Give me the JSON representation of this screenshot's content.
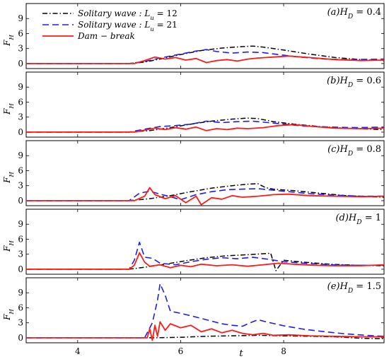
{
  "figure": {
    "ylabel": "F",
    "ylabel_sub": "H",
    "xlabel": "t"
  },
  "legend": {
    "entries": [
      {
        "text": "Solitary wave :  L",
        "sub": "u",
        "tail": " = 12",
        "color": "#000000",
        "dash": "dashdot"
      },
      {
        "text": "Solitary wave :  L",
        "sub": "u",
        "tail": " = 21",
        "color": "#1f1fe0",
        "dash": "dashed"
      },
      {
        "text": "Dam − break",
        "sub": "",
        "tail": "",
        "color": "#ff1a1a",
        "dash": "solid"
      }
    ]
  },
  "chart_data": [
    {
      "type": "line",
      "panel_label": "(a)",
      "label_var": "H",
      "label_sub": "D",
      "label_value": " = 0.4",
      "xlim": [
        3,
        9.95
      ],
      "ylim": [
        -1,
        12
      ],
      "yticks": [
        0,
        3,
        6,
        9
      ],
      "xticks": [
        4,
        6,
        8
      ],
      "series": [
        {
          "key": "s12",
          "x": [
            3,
            5.0,
            5.3,
            5.6,
            6.0,
            6.4,
            6.8,
            7.2,
            7.4,
            7.6,
            8.0,
            8.5,
            9.0,
            9.5,
            9.95
          ],
          "y": [
            0,
            0,
            0.3,
            0.9,
            1.8,
            2.6,
            3.1,
            3.4,
            3.5,
            3.3,
            2.7,
            1.9,
            1.2,
            0.8,
            0.6
          ]
        },
        {
          "key": "s21",
          "x": [
            3,
            5.0,
            5.3,
            5.6,
            6.0,
            6.3,
            6.5,
            6.7,
            7.0,
            7.3,
            7.6,
            7.9,
            8.3,
            8.8,
            9.3,
            9.95
          ],
          "y": [
            0,
            0,
            0.4,
            1.1,
            1.9,
            2.5,
            2.8,
            2.4,
            2.1,
            2.3,
            2.2,
            1.8,
            1.3,
            0.9,
            0.8,
            0.9
          ]
        },
        {
          "key": "dam",
          "x": [
            3,
            5.1,
            5.3,
            5.5,
            5.7,
            5.9,
            6.1,
            6.3,
            6.5,
            6.7,
            6.9,
            7.1,
            7.3,
            7.5,
            7.8,
            8.1,
            8.5,
            9.0,
            9.5,
            9.95
          ],
          "y": [
            0,
            0,
            0.6,
            1.3,
            0.9,
            1.2,
            0.7,
            1.0,
            0.2,
            0.6,
            0.8,
            0.5,
            0.9,
            1.1,
            1.3,
            1.5,
            1.2,
            0.8,
            0.6,
            0.7
          ]
        }
      ]
    },
    {
      "type": "line",
      "panel_label": "(b)",
      "label_var": "H",
      "label_sub": "D",
      "label_value": " = 0.6",
      "xlim": [
        3,
        9.95
      ],
      "ylim": [
        -1,
        12
      ],
      "yticks": [
        0,
        3,
        6,
        9
      ],
      "xticks": [
        4,
        6,
        8
      ],
      "series": [
        {
          "key": "s12",
          "x": [
            3,
            5.0,
            5.4,
            5.8,
            6.2,
            6.6,
            7.0,
            7.3,
            7.5,
            7.8,
            8.2,
            8.7,
            9.2,
            9.95
          ],
          "y": [
            0,
            0,
            0.3,
            0.9,
            1.6,
            2.2,
            2.6,
            2.8,
            2.7,
            2.1,
            1.6,
            1.1,
            0.8,
            0.5
          ]
        },
        {
          "key": "s21",
          "x": [
            3,
            5.0,
            5.3,
            5.6,
            5.9,
            6.2,
            6.5,
            6.8,
            7.1,
            7.4,
            7.7,
            8.0,
            8.4,
            8.9,
            9.4,
            9.95
          ],
          "y": [
            0,
            0,
            0.6,
            1.1,
            1.3,
            1.6,
            2.2,
            1.9,
            2.1,
            2.2,
            1.9,
            1.6,
            1.2,
            1.0,
            0.9,
            1.0
          ]
        },
        {
          "key": "dam",
          "x": [
            3,
            5.1,
            5.3,
            5.5,
            5.7,
            5.9,
            6.1,
            6.3,
            6.5,
            6.7,
            6.9,
            7.1,
            7.3,
            7.6,
            7.9,
            8.2,
            8.6,
            9.0,
            9.5,
            9.95
          ],
          "y": [
            0,
            0,
            0.4,
            0.8,
            0.5,
            0.9,
            0.6,
            1.0,
            0.3,
            0.7,
            0.5,
            0.8,
            0.7,
            0.9,
            1.3,
            1.5,
            1.1,
            0.8,
            0.7,
            0.8
          ]
        }
      ]
    },
    {
      "type": "line",
      "panel_label": "(c)",
      "label_var": "H",
      "label_sub": "D",
      "label_value": " = 0.8",
      "xlim": [
        3,
        9.95
      ],
      "ylim": [
        -1,
        12
      ],
      "yticks": [
        0,
        3,
        6,
        9
      ],
      "xticks": [
        4,
        6,
        8
      ],
      "series": [
        {
          "key": "s12",
          "x": [
            3,
            5.0,
            5.4,
            5.8,
            6.2,
            6.6,
            7.0,
            7.3,
            7.5,
            7.65,
            7.8,
            8.2,
            8.7,
            9.2,
            9.95
          ],
          "y": [
            0,
            0,
            0.4,
            1.0,
            1.8,
            2.5,
            3.0,
            3.3,
            3.4,
            2.6,
            2.3,
            2.0,
            1.5,
            1.0,
            0.7
          ]
        },
        {
          "key": "s21",
          "x": [
            3,
            5.0,
            5.2,
            5.4,
            5.6,
            5.8,
            6.0,
            6.3,
            6.6,
            6.9,
            7.2,
            7.5,
            7.8,
            8.1,
            8.5,
            9.0,
            9.5,
            9.95
          ],
          "y": [
            0,
            0,
            1.5,
            1.9,
            1.3,
            0.8,
            0.2,
            1.2,
            1.8,
            2.2,
            2.3,
            2.4,
            2.1,
            1.8,
            1.4,
            1.1,
            0.9,
            0.9
          ]
        },
        {
          "key": "dam",
          "x": [
            3,
            5.1,
            5.3,
            5.4,
            5.5,
            5.7,
            5.9,
            6.1,
            6.3,
            6.4,
            6.6,
            6.8,
            7.0,
            7.2,
            7.5,
            7.8,
            8.1,
            8.5,
            9.0,
            9.5,
            9.95
          ],
          "y": [
            0,
            0,
            0.9,
            2.6,
            1.2,
            0.4,
            1.0,
            -0.4,
            0.9,
            -0.8,
            0.6,
            0.3,
            1.0,
            0.7,
            0.9,
            1.2,
            1.3,
            1.0,
            0.9,
            0.8,
            0.9
          ]
        }
      ]
    },
    {
      "type": "line",
      "panel_label": "(d)",
      "label_var": "H",
      "label_sub": "D",
      "label_value": " = 1",
      "xlim": [
        3,
        9.95
      ],
      "ylim": [
        -1,
        12
      ],
      "yticks": [
        0,
        3,
        6,
        9
      ],
      "xticks": [
        4,
        6,
        8
      ],
      "series": [
        {
          "key": "s12",
          "x": [
            3,
            5.0,
            5.3,
            5.7,
            6.1,
            6.5,
            6.9,
            7.3,
            7.6,
            7.75,
            7.85,
            8.0,
            8.4,
            8.9,
            9.4,
            9.95
          ],
          "y": [
            0,
            0,
            0.4,
            1.0,
            1.7,
            2.3,
            2.7,
            2.9,
            3.1,
            3.2,
            -0.3,
            1.8,
            1.4,
            1.0,
            0.8,
            0.7
          ]
        },
        {
          "key": "s21",
          "x": [
            3,
            5.0,
            5.1,
            5.2,
            5.3,
            5.45,
            5.6,
            5.9,
            6.2,
            6.5,
            6.8,
            7.1,
            7.4,
            7.7,
            8.0,
            8.4,
            8.9,
            9.4,
            9.95
          ],
          "y": [
            0,
            0,
            1.8,
            5.4,
            2.4,
            2.2,
            1.2,
            0.9,
            1.5,
            2.0,
            2.3,
            2.1,
            2.4,
            2.0,
            1.5,
            1.2,
            0.9,
            0.8,
            0.8
          ]
        },
        {
          "key": "dam",
          "x": [
            3,
            5.0,
            5.1,
            5.2,
            5.3,
            5.4,
            5.6,
            5.8,
            6.0,
            6.2,
            6.4,
            6.7,
            7.0,
            7.3,
            7.6,
            7.9,
            8.2,
            8.6,
            9.0,
            9.5,
            9.95
          ],
          "y": [
            0,
            0,
            0.8,
            3.3,
            1.4,
            0.6,
            0.9,
            0.3,
            0.8,
            0.5,
            1.0,
            0.7,
            0.9,
            0.6,
            0.9,
            1.2,
            1.0,
            0.8,
            0.7,
            0.7,
            0.9
          ]
        }
      ]
    },
    {
      "type": "line",
      "panel_label": "(e)",
      "label_var": "H",
      "label_sub": "D",
      "label_value": " = 1.5",
      "xlim": [
        3,
        9.95
      ],
      "ylim": [
        -1,
        12
      ],
      "yticks": [
        0,
        3,
        6,
        9
      ],
      "xticks": [
        4,
        6,
        8
      ],
      "series": [
        {
          "key": "s12",
          "x": [
            3,
            5.5,
            6.0,
            6.5,
            7.0,
            7.5,
            8.0,
            8.5,
            9.0,
            9.5,
            9.95
          ],
          "y": [
            0,
            0,
            0.1,
            0.3,
            0.4,
            0.5,
            0.4,
            0.3,
            0.2,
            -0.1,
            -0.2
          ]
        },
        {
          "key": "s21",
          "x": [
            3,
            5.3,
            5.45,
            5.55,
            5.6,
            5.7,
            5.8,
            5.95,
            6.2,
            6.5,
            6.8,
            7.0,
            7.2,
            7.35,
            7.5,
            7.7,
            8.0,
            8.4,
            8.8,
            9.2,
            9.6,
            9.95
          ],
          "y": [
            0,
            0,
            3.0,
            7.5,
            10.8,
            8.5,
            5.3,
            5.0,
            4.4,
            3.6,
            2.8,
            2.5,
            2.3,
            3.0,
            3.6,
            3.1,
            2.4,
            1.7,
            1.2,
            0.8,
            0.5,
            0.3
          ]
        },
        {
          "key": "dam",
          "x": [
            3,
            5.35,
            5.4,
            5.45,
            5.5,
            5.55,
            5.6,
            5.7,
            5.8,
            6.0,
            6.2,
            6.4,
            6.6,
            6.8,
            7.0,
            7.2,
            7.4,
            7.6,
            7.8,
            8.1,
            8.5,
            9.0,
            9.5,
            9.95
          ],
          "y": [
            0,
            0,
            1.8,
            -0.5,
            2.5,
            0.3,
            3.2,
            1.5,
            2.8,
            2.0,
            2.5,
            1.2,
            1.8,
            1.0,
            1.5,
            0.9,
            0.6,
            0.9,
            0.5,
            0.6,
            0.4,
            0.3,
            0.2,
            0.2
          ]
        }
      ]
    }
  ]
}
